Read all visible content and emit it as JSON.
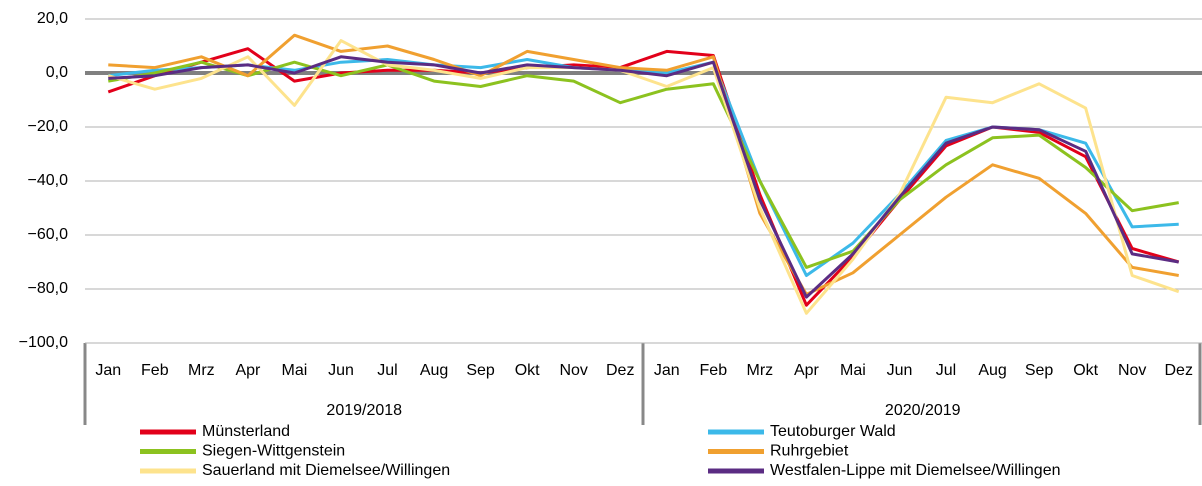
{
  "chart_data": {
    "type": "line",
    "categories": [
      "Jan",
      "Feb",
      "Mrz",
      "Apr",
      "Mai",
      "Jun",
      "Jul",
      "Aug",
      "Sep",
      "Okt",
      "Nov",
      "Dez",
      "Jan",
      "Feb",
      "Mrz",
      "Apr",
      "Mai",
      "Jun",
      "Jul",
      "Aug",
      "Sep",
      "Okt",
      "Nov",
      "Dez"
    ],
    "groups": [
      "2019/2018",
      "2020/2019"
    ],
    "ylim": [
      -100,
      20
    ],
    "yticks": [
      {
        "value": 20,
        "label": "20,0"
      },
      {
        "value": 0,
        "label": "0,0"
      },
      {
        "value": -20,
        "label": "−20,0"
      },
      {
        "value": -40,
        "label": "−40,0"
      },
      {
        "value": -60,
        "label": "−60,0"
      },
      {
        "value": -80,
        "label": "−80,0"
      },
      {
        "value": -100,
        "label": "−100,0"
      }
    ],
    "grid": true,
    "series": [
      {
        "name": "Münsterland",
        "color": "#e2001a",
        "values": [
          -7,
          -1,
          4,
          9,
          -3,
          0,
          1,
          1,
          0,
          2,
          3,
          2,
          8,
          6.5,
          -45,
          -86,
          -68,
          -47,
          -27,
          -20,
          -22,
          -31,
          -65,
          -70
        ]
      },
      {
        "name": "Teutoburger Wald",
        "color": "#3cb9e9",
        "values": [
          -1,
          1,
          2,
          3,
          1,
          4,
          5,
          3,
          2,
          5,
          2,
          1,
          0,
          4,
          -40,
          -75,
          -63,
          -45,
          -25,
          -20,
          -21,
          -26,
          -57,
          -56
        ]
      },
      {
        "name": "Siegen-Wittgenstein",
        "color": "#8cc21f",
        "values": [
          -3,
          0,
          4,
          -1,
          4,
          -1,
          3,
          -3,
          -5,
          -1,
          -3,
          -11,
          -6,
          -4,
          -40,
          -72,
          -66,
          -47,
          -34,
          -24,
          -23,
          -35,
          -51,
          -48
        ]
      },
      {
        "name": "Ruhrgebiet",
        "color": "#f0a030",
        "values": [
          3,
          2,
          6,
          -1,
          14,
          8,
          10,
          5,
          -1,
          8,
          5,
          2,
          1,
          6,
          -52,
          -82,
          -74,
          -60,
          -46,
          -34,
          -39,
          -52,
          -72,
          -75
        ]
      },
      {
        "name": "Sauerland mit Diemelsee/Willingen",
        "color": "#fde38d",
        "values": [
          -1,
          -6,
          -2,
          6,
          -12,
          12,
          3,
          1,
          -2,
          2,
          2,
          1,
          -5,
          2,
          -50,
          -89,
          -69,
          -45,
          -9,
          -11,
          -4,
          -13,
          -75,
          -81
        ]
      },
      {
        "name": "Westfalen-Lippe mit Diemelsee/Willingen",
        "color": "#5b2c83",
        "values": [
          -2,
          -1,
          2,
          3,
          0,
          6,
          4,
          3,
          0,
          3,
          2,
          1,
          -1,
          4,
          -47,
          -83,
          -67,
          -46,
          -26,
          -20,
          -21,
          -29,
          -67,
          -70
        ]
      }
    ]
  }
}
